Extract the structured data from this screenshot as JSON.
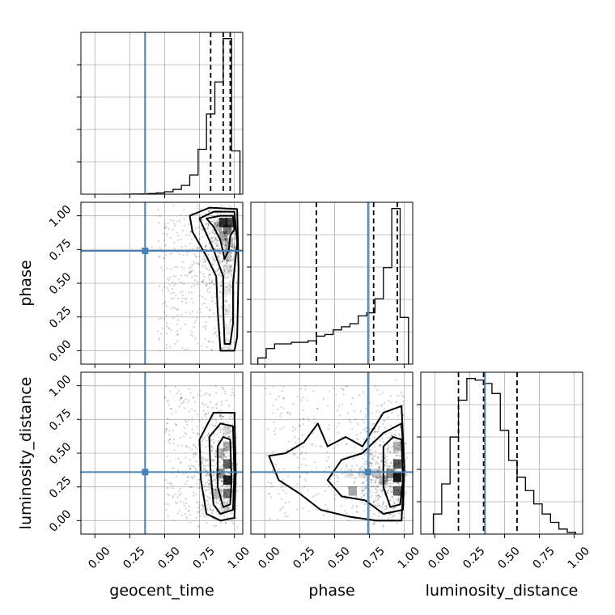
{
  "chart_data": {
    "type": "corner",
    "parameters": [
      "geocent_time",
      "phase",
      "luminosity_distance"
    ],
    "xlim": [
      -0.1,
      1.06
    ],
    "ylim": [
      -0.1,
      1.1
    ],
    "tick_values": [
      0.0,
      0.25,
      0.5,
      0.75,
      1.0
    ],
    "tick_labels": [
      "0.00",
      "0.25",
      "0.50",
      "0.75",
      "1.00"
    ],
    "truths": {
      "geocent_time": 0.36,
      "phase": 0.74,
      "luminosity_distance": 0.36
    },
    "colors": {
      "truth": "#4682b4",
      "hist": "#000000",
      "grid": "#b0b0b0"
    },
    "grid": true,
    "histograms": [
      {
        "parameter": "geocent_time",
        "bin_edges": [
          0.2,
          0.26,
          0.32,
          0.38,
          0.44,
          0.5,
          0.56,
          0.62,
          0.68,
          0.74,
          0.8,
          0.86,
          0.92,
          0.98,
          1.04
        ],
        "counts": [
          0.0,
          0.001,
          0.002,
          0.004,
          0.008,
          0.015,
          0.03,
          0.055,
          0.12,
          0.28,
          0.5,
          0.7,
          0.97,
          0.27
        ],
        "quantiles": [
          0.83,
          0.92,
          0.97
        ]
      },
      {
        "parameter": "phase",
        "bin_edges": [
          -0.05,
          0.01,
          0.07,
          0.13,
          0.19,
          0.25,
          0.31,
          0.37,
          0.43,
          0.49,
          0.55,
          0.61,
          0.67,
          0.73,
          0.79,
          0.85,
          0.91,
          0.97,
          1.03
        ],
        "counts": [
          0.04,
          0.1,
          0.13,
          0.13,
          0.14,
          0.14,
          0.15,
          0.18,
          0.19,
          0.22,
          0.24,
          0.26,
          0.31,
          0.33,
          0.42,
          0.62,
          1.0,
          0.3
        ],
        "quantiles": [
          0.37,
          0.78,
          0.95
        ]
      },
      {
        "parameter": "luminosity_distance",
        "bin_edges": [
          -0.01,
          0.05,
          0.11,
          0.17,
          0.23,
          0.29,
          0.35,
          0.41,
          0.47,
          0.53,
          0.59,
          0.65,
          0.71,
          0.77,
          0.83,
          0.89,
          0.95,
          1.01
        ],
        "counts": [
          0.12,
          0.3,
          0.58,
          0.8,
          0.93,
          0.92,
          0.9,
          0.84,
          0.62,
          0.44,
          0.34,
          0.26,
          0.18,
          0.12,
          0.07,
          0.03,
          0.01
        ],
        "quantiles": [
          0.17,
          0.35,
          0.59
        ]
      }
    ],
    "panels_2d": [
      {
        "x": "geocent_time",
        "y": "phase",
        "density_cells": [
          {
            "x": 0.92,
            "y": 0.95,
            "v": 0.8
          },
          {
            "x": 0.97,
            "y": 0.95,
            "v": 0.7
          },
          {
            "x": 0.95,
            "y": 0.9,
            "v": 0.5
          },
          {
            "x": 0.92,
            "y": 0.85,
            "v": 0.35
          },
          {
            "x": 0.96,
            "y": 0.8,
            "v": 0.3
          },
          {
            "x": 0.95,
            "y": 0.7,
            "v": 0.2
          },
          {
            "x": 0.88,
            "y": 0.92,
            "v": 0.25
          },
          {
            "x": 0.95,
            "y": 0.6,
            "v": 0.12
          },
          {
            "x": 0.95,
            "y": 0.45,
            "v": 0.1
          },
          {
            "x": 0.95,
            "y": 0.3,
            "v": 0.08
          },
          {
            "x": 0.95,
            "y": 0.15,
            "v": 0.08
          },
          {
            "x": 0.95,
            "y": 0.05,
            "v": 0.1
          }
        ],
        "contours": [
          [
            [
              0.8,
              0.98
            ],
            [
              0.9,
              1.0
            ],
            [
              0.99,
              1.0
            ],
            [
              1.0,
              0.9
            ],
            [
              0.97,
              0.85
            ],
            [
              0.96,
              0.75
            ],
            [
              0.93,
              0.68
            ],
            [
              0.9,
              0.82
            ],
            [
              0.85,
              0.92
            ],
            [
              0.8,
              0.98
            ]
          ],
          [
            [
              0.75,
              0.98
            ],
            [
              0.85,
              1.03
            ],
            [
              1.0,
              1.03
            ],
            [
              1.02,
              0.8
            ],
            [
              0.99,
              0.5
            ],
            [
              0.99,
              0.2
            ],
            [
              0.97,
              0.05
            ],
            [
              0.93,
              0.05
            ],
            [
              0.92,
              0.3
            ],
            [
              0.92,
              0.55
            ],
            [
              0.85,
              0.75
            ],
            [
              0.75,
              0.98
            ]
          ],
          [
            [
              0.68,
              1.0
            ],
            [
              0.82,
              1.06
            ],
            [
              1.02,
              1.05
            ],
            [
              1.03,
              0.6
            ],
            [
              1.02,
              0.1
            ],
            [
              1.0,
              0.0
            ],
            [
              0.9,
              0.0
            ],
            [
              0.88,
              0.3
            ],
            [
              0.87,
              0.55
            ],
            [
              0.8,
              0.7
            ],
            [
              0.7,
              0.88
            ],
            [
              0.68,
              1.0
            ]
          ]
        ],
        "scatter_region": {
          "x": [
            0.45,
            1.0
          ],
          "y": [
            0.0,
            1.05
          ]
        }
      },
      {
        "x": "geocent_time",
        "y": "luminosity_distance",
        "density_cells": [
          {
            "x": 0.95,
            "y": 0.3,
            "v": 0.85
          },
          {
            "x": 0.95,
            "y": 0.42,
            "v": 0.6
          },
          {
            "x": 0.95,
            "y": 0.2,
            "v": 0.55
          },
          {
            "x": 0.9,
            "y": 0.35,
            "v": 0.45
          },
          {
            "x": 0.95,
            "y": 0.55,
            "v": 0.3
          },
          {
            "x": 0.9,
            "y": 0.5,
            "v": 0.25
          },
          {
            "x": 0.88,
            "y": 0.2,
            "v": 0.25
          },
          {
            "x": 0.95,
            "y": 0.68,
            "v": 0.15
          },
          {
            "x": 0.93,
            "y": 0.1,
            "v": 0.15
          }
        ],
        "contours": [
          [
            [
              0.88,
              0.55
            ],
            [
              0.92,
              0.62
            ],
            [
              0.97,
              0.6
            ],
            [
              0.98,
              0.3
            ],
            [
              0.97,
              0.12
            ],
            [
              0.92,
              0.1
            ],
            [
              0.88,
              0.25
            ],
            [
              0.88,
              0.55
            ]
          ],
          [
            [
              0.82,
              0.62
            ],
            [
              0.9,
              0.72
            ],
            [
              0.99,
              0.7
            ],
            [
              1.0,
              0.35
            ],
            [
              0.99,
              0.08
            ],
            [
              0.9,
              0.05
            ],
            [
              0.85,
              0.12
            ],
            [
              0.83,
              0.35
            ],
            [
              0.82,
              0.62
            ]
          ],
          [
            [
              0.75,
              0.6
            ],
            [
              0.85,
              0.8
            ],
            [
              1.0,
              0.8
            ],
            [
              1.01,
              0.35
            ],
            [
              1.0,
              0.02
            ],
            [
              0.9,
              0.0
            ],
            [
              0.8,
              0.05
            ],
            [
              0.76,
              0.3
            ],
            [
              0.75,
              0.6
            ]
          ]
        ],
        "scatter_region": {
          "x": [
            0.5,
            1.0
          ],
          "y": [
            0.0,
            1.0
          ]
        }
      },
      {
        "x": "phase",
        "y": "luminosity_distance",
        "density_cells": [
          {
            "x": 0.95,
            "y": 0.32,
            "v": 0.9
          },
          {
            "x": 0.95,
            "y": 0.42,
            "v": 0.65
          },
          {
            "x": 0.95,
            "y": 0.22,
            "v": 0.6
          },
          {
            "x": 0.9,
            "y": 0.35,
            "v": 0.45
          },
          {
            "x": 0.85,
            "y": 0.3,
            "v": 0.3
          },
          {
            "x": 0.95,
            "y": 0.55,
            "v": 0.3
          },
          {
            "x": 0.8,
            "y": 0.35,
            "v": 0.2
          },
          {
            "x": 0.7,
            "y": 0.35,
            "v": 0.12
          },
          {
            "x": 0.6,
            "y": 0.35,
            "v": 0.08
          },
          {
            "x": 0.63,
            "y": 0.22,
            "v": 0.35
          }
        ],
        "contours": [
          [
            [
              0.85,
              0.55
            ],
            [
              0.92,
              0.62
            ],
            [
              0.98,
              0.6
            ],
            [
              0.99,
              0.3
            ],
            [
              0.97,
              0.12
            ],
            [
              0.9,
              0.1
            ],
            [
              0.85,
              0.25
            ],
            [
              0.85,
              0.55
            ]
          ],
          [
            [
              0.45,
              0.3
            ],
            [
              0.55,
              0.45
            ],
            [
              0.7,
              0.5
            ],
            [
              0.85,
              0.65
            ],
            [
              0.98,
              0.72
            ],
            [
              1.0,
              0.4
            ],
            [
              0.99,
              0.08
            ],
            [
              0.85,
              0.05
            ],
            [
              0.72,
              0.15
            ],
            [
              0.55,
              0.18
            ],
            [
              0.45,
              0.3
            ]
          ],
          [
            [
              0.03,
              0.48
            ],
            [
              0.15,
              0.5
            ],
            [
              0.28,
              0.58
            ],
            [
              0.38,
              0.72
            ],
            [
              0.45,
              0.55
            ],
            [
              0.58,
              0.62
            ],
            [
              0.7,
              0.55
            ],
            [
              0.85,
              0.8
            ],
            [
              0.98,
              0.85
            ],
            [
              1.0,
              0.4
            ],
            [
              0.98,
              0.0
            ],
            [
              0.8,
              0.0
            ],
            [
              0.6,
              0.03
            ],
            [
              0.4,
              0.08
            ],
            [
              0.25,
              0.2
            ],
            [
              0.1,
              0.3
            ],
            [
              0.03,
              0.48
            ]
          ]
        ],
        "scatter_region": {
          "x": [
            0.0,
            1.0
          ],
          "y": [
            0.0,
            1.0
          ]
        }
      }
    ]
  }
}
